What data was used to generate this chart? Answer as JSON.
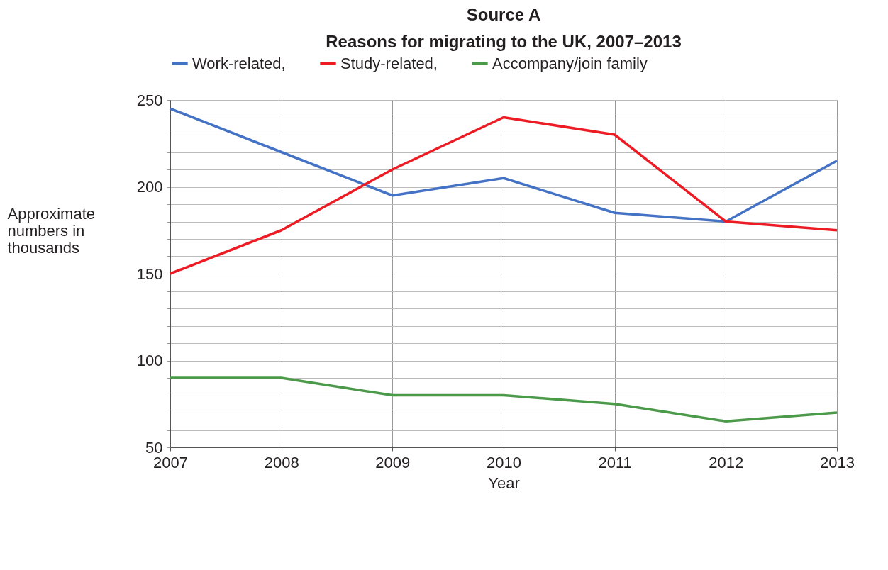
{
  "chart_data": {
    "type": "line",
    "title": "Source A",
    "subtitle": "Reasons for migrating to the UK, 2007–2013",
    "xlabel": "Year",
    "ylabel": "Approximate numbers in thousands",
    "x": [
      2007,
      2008,
      2009,
      2010,
      2011,
      2012,
      2013
    ],
    "series": [
      {
        "name": "Work-related,",
        "color": "#4472c4",
        "values": [
          245,
          220,
          195,
          205,
          185,
          180,
          215
        ]
      },
      {
        "name": "Study-related,",
        "color": "#ed1c24",
        "values": [
          150,
          175,
          210,
          240,
          230,
          180,
          175
        ]
      },
      {
        "name": "Accompany/join family",
        "color": "#4a9a4a",
        "values": [
          90,
          90,
          80,
          80,
          75,
          65,
          70
        ]
      }
    ],
    "xlim": [
      2007,
      2013
    ],
    "xticks": [
      2007,
      2008,
      2009,
      2010,
      2011,
      2012,
      2013
    ],
    "ylim": [
      50,
      250
    ],
    "yticks": [
      50,
      {
        "value": 60,
        "label": null
      },
      {
        "value": 70,
        "label": null
      },
      {
        "value": 80,
        "label": null
      },
      {
        "value": 90,
        "label": null
      },
      100,
      {
        "value": 110,
        "label": null
      },
      {
        "value": 120,
        "label": null
      },
      {
        "value": 130,
        "label": null
      },
      {
        "value": 140,
        "label": null
      },
      150,
      {
        "value": 160,
        "label": null
      },
      {
        "value": 170,
        "label": null
      },
      {
        "value": 180,
        "label": null
      },
      {
        "value": 190,
        "label": null
      },
      200,
      {
        "value": 210,
        "label": null
      },
      {
        "value": 220,
        "label": null
      },
      {
        "value": 230,
        "label": null
      },
      {
        "value": 240,
        "label": null
      },
      250
    ],
    "grid": true,
    "legend": "top",
    "marker": "none",
    "line_style": "solid"
  }
}
